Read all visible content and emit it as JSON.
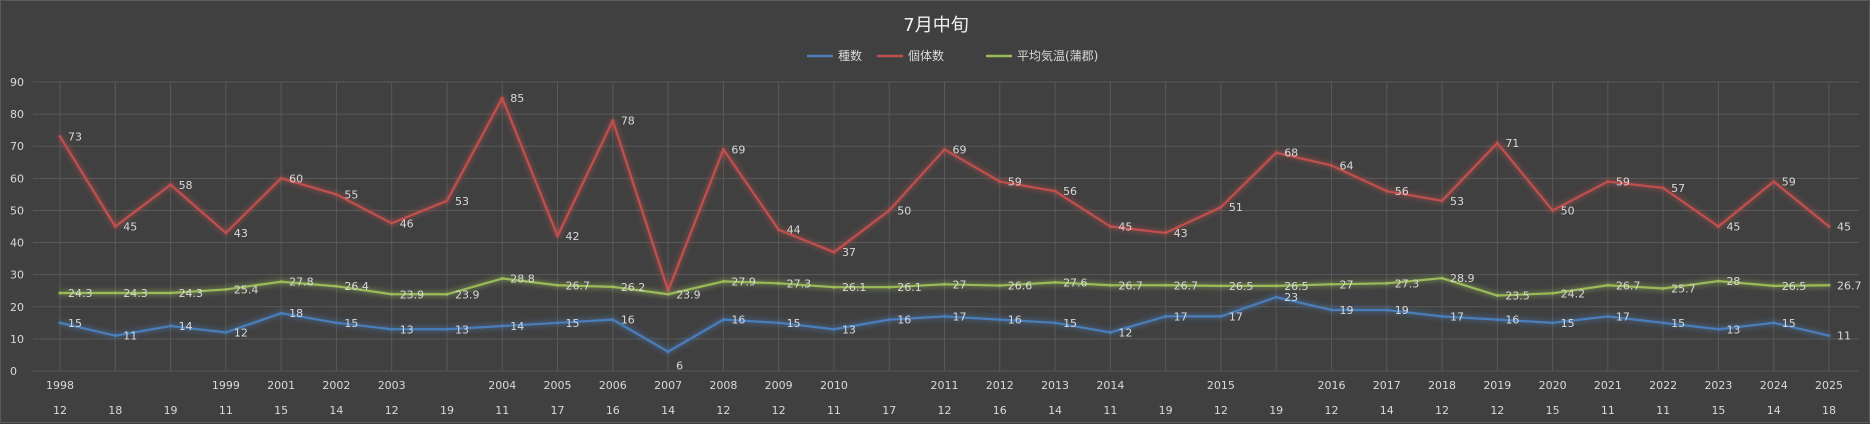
{
  "chart_data": {
    "type": "line",
    "title": "7月中旬",
    "ylim": [
      0,
      90
    ],
    "yticks": [
      0,
      10,
      20,
      30,
      40,
      50,
      60,
      70,
      80,
      90
    ],
    "grid": true,
    "legend_position": "top",
    "categories": [
      "1998",
      "",
      "",
      "1999",
      "2001",
      "2002",
      "2003",
      "",
      "2004",
      "2005",
      "2006",
      "2007",
      "2008",
      "2009",
      "2010",
      "",
      "2011",
      "2012",
      "2013",
      "2014",
      "",
      "2015",
      "",
      "2016",
      "2017",
      "2018",
      "2019",
      "2020",
      "2021",
      "2022",
      "2023",
      "2024",
      "2025"
    ],
    "secondary_categories": [
      "12",
      "18",
      "19",
      "11",
      "15",
      "14",
      "12",
      "19",
      "11",
      "17",
      "16",
      "14",
      "12",
      "12",
      "11",
      "17",
      "12",
      "16",
      "14",
      "11",
      "19",
      "12",
      "19",
      "12",
      "14",
      "12",
      "12",
      "15",
      "11",
      "11",
      "15",
      "14",
      "18"
    ],
    "series": [
      {
        "name": "種数",
        "color": "#4a7ebb",
        "values": [
          15,
          11,
          14,
          12,
          18,
          15,
          13,
          13,
          14,
          15,
          16,
          6,
          16,
          15,
          13,
          16,
          17,
          16,
          15,
          12,
          17,
          17,
          23,
          19,
          19,
          17,
          16,
          15,
          17,
          15,
          13,
          15,
          11
        ]
      },
      {
        "name": "個体数",
        "color": "#c0504d",
        "values": [
          73,
          45,
          58,
          43,
          60,
          55,
          46,
          53,
          85,
          42,
          78,
          25,
          69,
          44,
          37,
          50,
          69,
          59,
          56,
          45,
          43,
          51,
          68,
          64,
          56,
          53,
          71,
          50,
          59,
          57,
          45,
          59,
          45
        ]
      },
      {
        "name": "平均気温(蒲郡)",
        "color": "#9bbb59",
        "values": [
          24.3,
          24.3,
          24.3,
          25.4,
          27.8,
          26.4,
          23.9,
          23.9,
          28.8,
          26.7,
          26.2,
          23.9,
          27.9,
          27.3,
          26.1,
          26.1,
          27,
          26.6,
          27.6,
          26.7,
          26.7,
          26.5,
          26.5,
          27,
          27.3,
          28.9,
          23.5,
          24.2,
          26.7,
          25.7,
          28,
          26.5,
          26.7
        ]
      }
    ],
    "data_labels": {
      "種数": [
        "15",
        "11",
        "14",
        "12",
        "18",
        "15",
        "13",
        "13",
        "14",
        "15",
        "16",
        "6",
        "16",
        "15",
        "13",
        "16",
        "17",
        "16",
        "15",
        "12",
        "17",
        "17",
        "23",
        "19",
        "19",
        "17",
        "16",
        "15",
        "17",
        "15",
        "13",
        "15",
        "11"
      ],
      "個体数": [
        "73",
        "45",
        "58",
        "43",
        "60",
        "55",
        "46",
        "53",
        "85",
        "42",
        "78",
        "",
        "69",
        "44",
        "37",
        "50",
        "69",
        "59",
        "56",
        "45",
        "43",
        "51",
        "68",
        "64",
        "56",
        "53",
        "71",
        "50",
        "59",
        "57",
        "45",
        "59",
        "45"
      ],
      "平均気温(蒲郡)": [
        "24.3",
        "24.3",
        "24.3",
        "25.4",
        "27.8",
        "26.4",
        "23.9",
        "23.9",
        "28.8",
        "26.7",
        "26.2",
        "23.9",
        "27.9",
        "27.3",
        "26.1",
        "26.1",
        "27",
        "26.6",
        "27.6",
        "26.7",
        "26.7",
        "26.5",
        "26.5",
        "27",
        "27.3",
        "28.9",
        "23.5",
        "24.2",
        "26.7",
        "25.7",
        "28",
        "26.5",
        "26.7"
      ]
    }
  }
}
